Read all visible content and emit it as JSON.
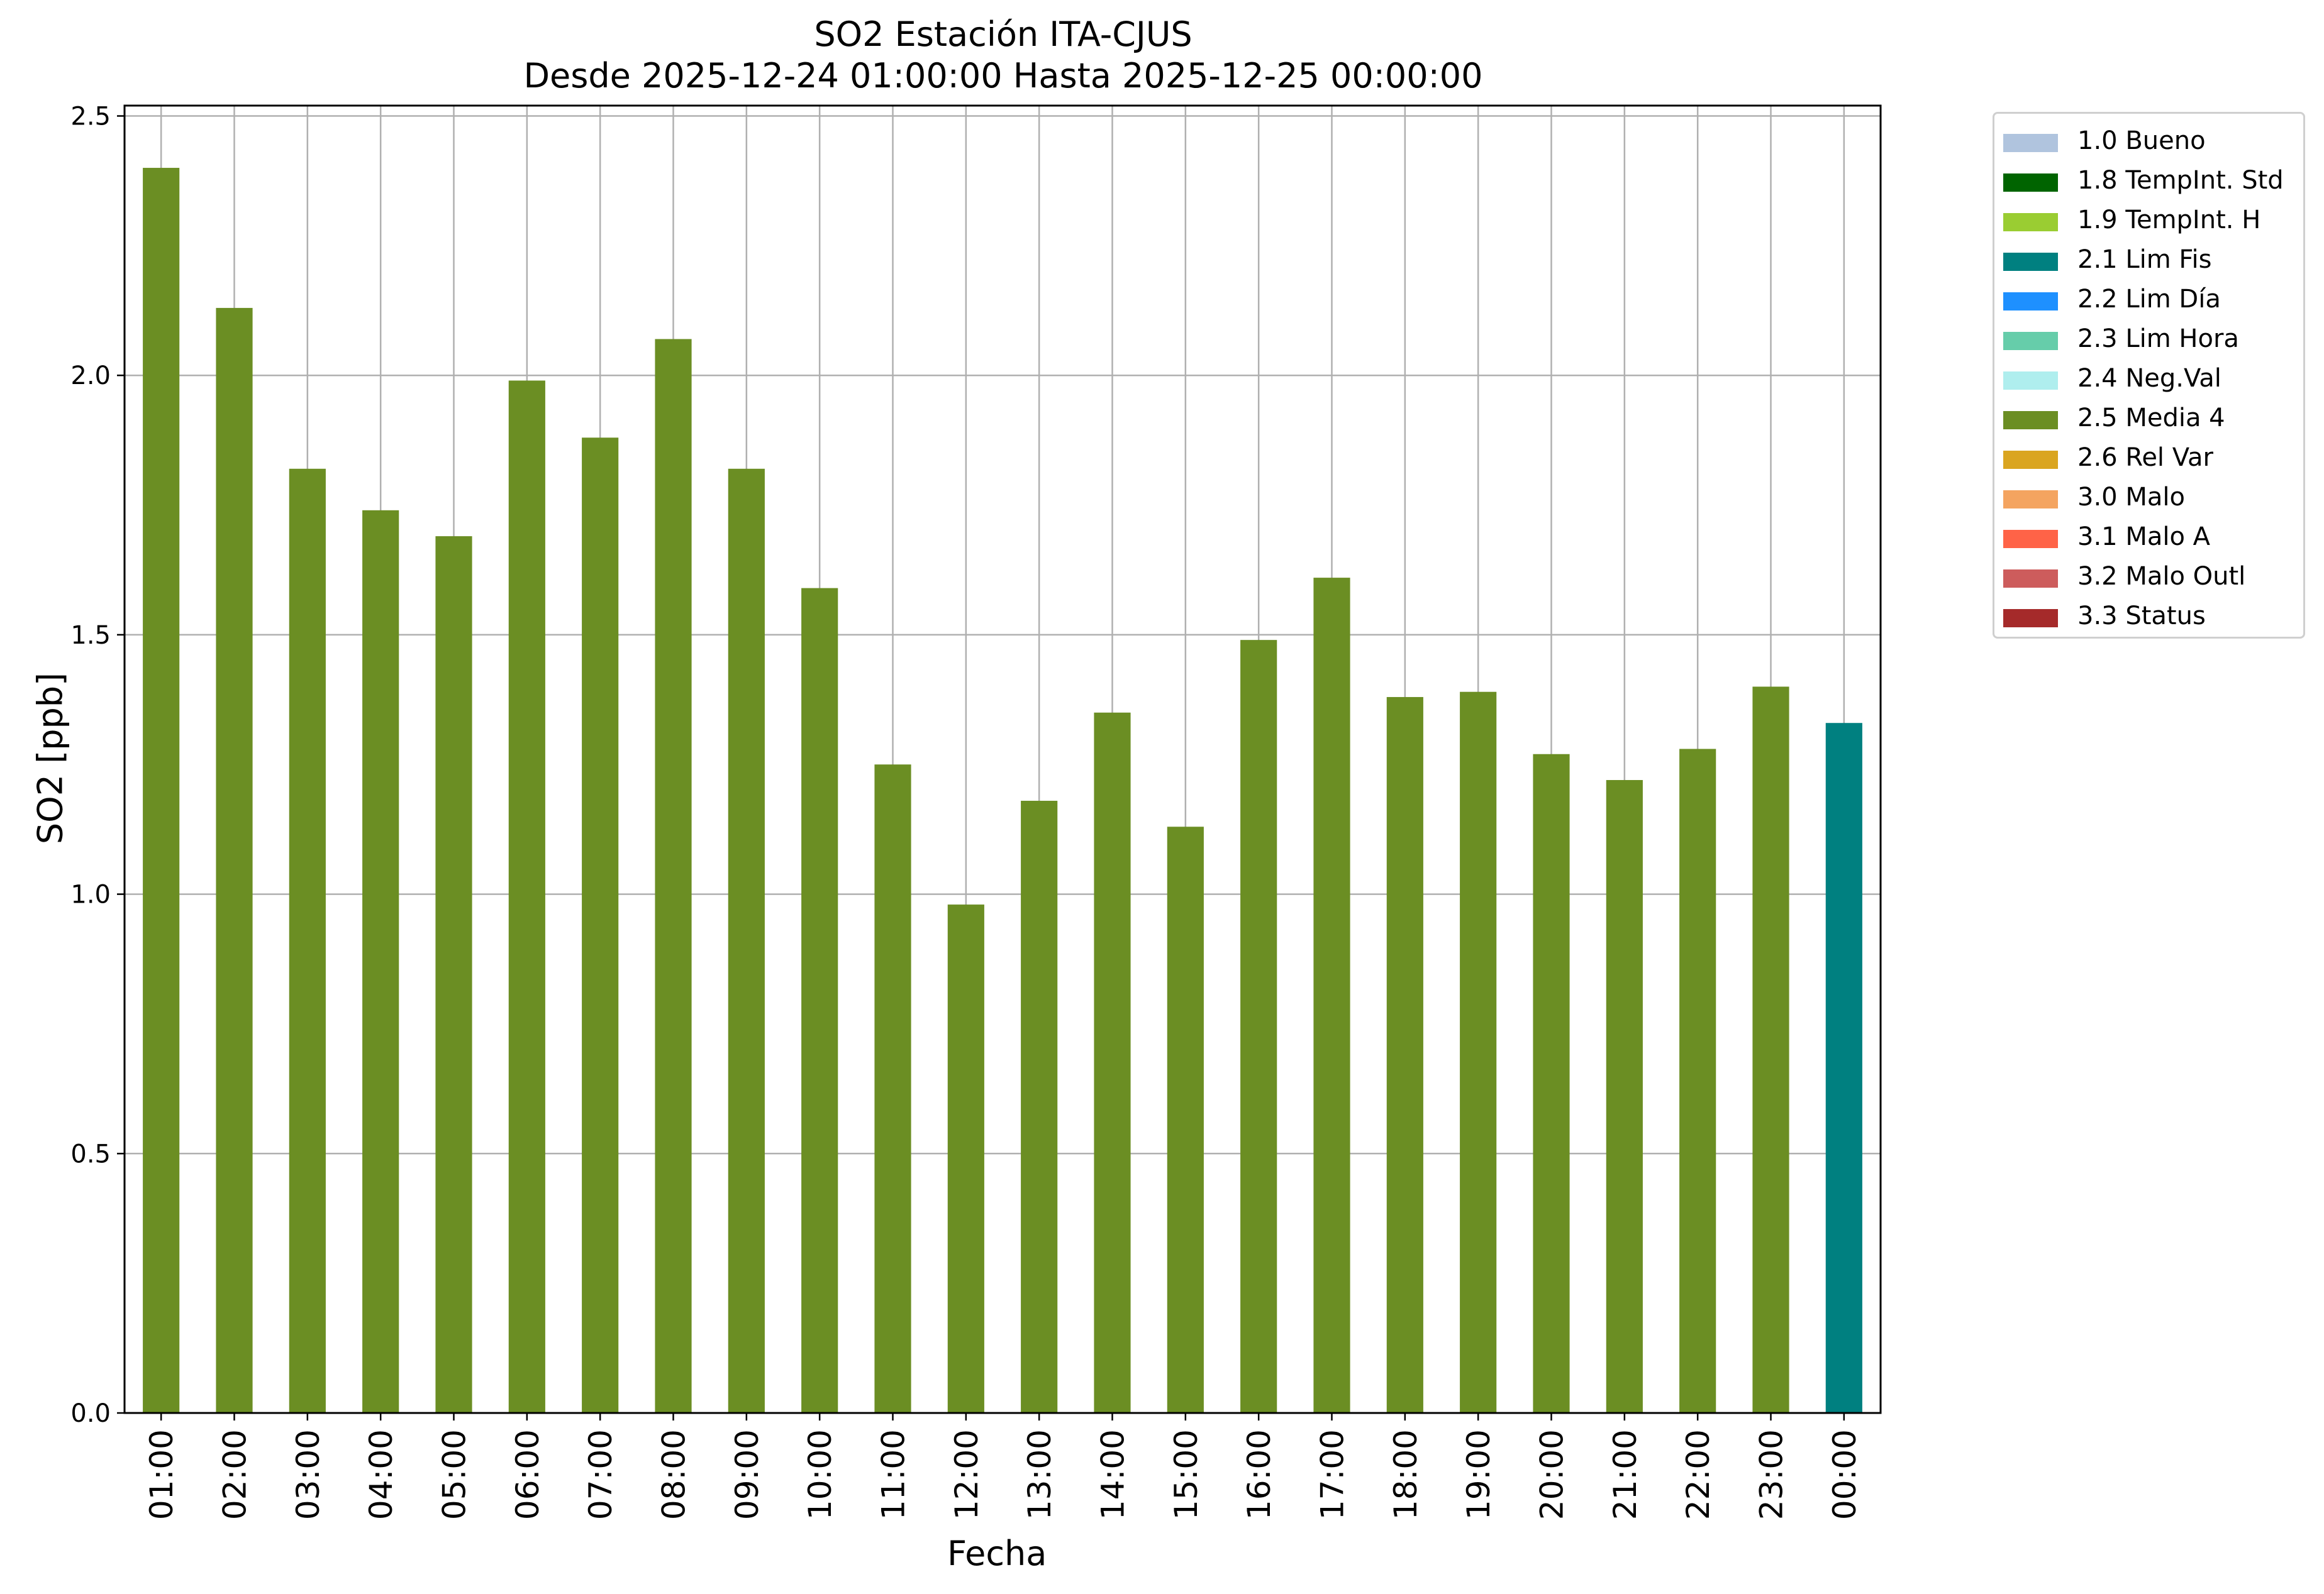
{
  "chart_data": {
    "type": "bar",
    "title": "SO2 Estación ITA-CJUS",
    "subtitle": "Desde 2025-12-24 01:00:00 Hasta 2025-12-25 00:00:00",
    "xlabel": "Fecha",
    "ylabel": "SO2 [ppb]",
    "ylim": [
      0,
      2.52
    ],
    "yticks": [
      "0.0",
      "0.5",
      "1.0",
      "1.5",
      "2.0",
      "2.5"
    ],
    "grid": true,
    "legend_position": "outside right, top",
    "categories": [
      "01:00",
      "02:00",
      "03:00",
      "04:00",
      "05:00",
      "06:00",
      "07:00",
      "08:00",
      "09:00",
      "10:00",
      "11:00",
      "12:00",
      "13:00",
      "14:00",
      "15:00",
      "16:00",
      "17:00",
      "18:00",
      "19:00",
      "20:00",
      "21:00",
      "22:00",
      "23:00",
      "00:00"
    ],
    "values": [
      2.4,
      2.13,
      1.82,
      1.74,
      1.69,
      1.99,
      1.88,
      2.07,
      1.82,
      1.59,
      1.25,
      0.98,
      1.18,
      1.35,
      1.13,
      1.49,
      1.61,
      1.38,
      1.39,
      1.27,
      1.22,
      1.28,
      1.4,
      1.33
    ],
    "bar_flags": [
      "2.5 Media 4",
      "2.5 Media 4",
      "2.5 Media 4",
      "2.5 Media 4",
      "2.5 Media 4",
      "2.5 Media 4",
      "2.5 Media 4",
      "2.5 Media 4",
      "2.5 Media 4",
      "2.5 Media 4",
      "2.5 Media 4",
      "2.5 Media 4",
      "2.5 Media 4",
      "2.5 Media 4",
      "2.5 Media 4",
      "2.5 Media 4",
      "2.5 Media 4",
      "2.5 Media 4",
      "2.5 Media 4",
      "2.5 Media 4",
      "2.5 Media 4",
      "2.5 Media 4",
      "2.5 Media 4",
      "2.1 Lim Fis"
    ],
    "legend": [
      {
        "label": "1.0 Bueno",
        "color": "#b0c4de"
      },
      {
        "label": "1.8 TempInt. Std",
        "color": "#006400"
      },
      {
        "label": "1.9 TempInt. H",
        "color": "#9acd32"
      },
      {
        "label": "2.1 Lim Fis",
        "color": "#008080"
      },
      {
        "label": "2.2 Lim Día",
        "color": "#1e90ff"
      },
      {
        "label": "2.3 Lim Hora",
        "color": "#66cdaa"
      },
      {
        "label": "2.4 Neg.Val",
        "color": "#afeeee"
      },
      {
        "label": "2.5 Media 4",
        "color": "#6b8e23"
      },
      {
        "label": "2.6 Rel Var",
        "color": "#daa520"
      },
      {
        "label": "3.0 Malo",
        "color": "#f4a460"
      },
      {
        "label": "3.1 Malo A",
        "color": "#ff6347"
      },
      {
        "label": "3.2 Malo Outl",
        "color": "#cd5c5c"
      },
      {
        "label": "3.3 Status",
        "color": "#a52a2a"
      }
    ]
  }
}
